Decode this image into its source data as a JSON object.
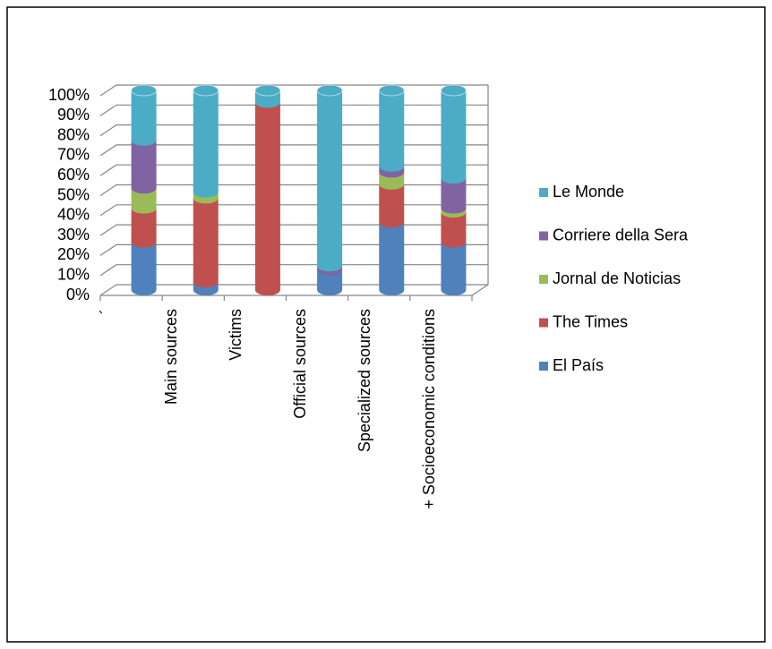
{
  "chart_data": {
    "type": "bar",
    "stacked": true,
    "categories": [
      "´",
      "Main sources",
      "Victims",
      "Official sources",
      "Specialized sources",
      "+ Socioeconomic conditions"
    ],
    "series": [
      {
        "name": "El País",
        "color": "#4f81bd",
        "values": [
          24,
          4,
          0,
          10,
          34,
          24
        ]
      },
      {
        "name": "The Times",
        "color": "#c0504d",
        "values": [
          17,
          42,
          94,
          0,
          19,
          15
        ]
      },
      {
        "name": "Jornal de Noticias",
        "color": "#9bbb59",
        "values": [
          10,
          3,
          0,
          0,
          6,
          2
        ]
      },
      {
        "name": "Corriere della Sera",
        "color": "#8064a2",
        "values": [
          24,
          0,
          0,
          2,
          3,
          15
        ]
      },
      {
        "name": "Le Monde",
        "color": "#4bacc6",
        "values": [
          25,
          51,
          6,
          88,
          38,
          44
        ]
      }
    ],
    "ylim": [
      0,
      100
    ],
    "yticks": [
      {
        "value": 0,
        "label": "0%"
      },
      {
        "value": 10,
        "label": "10%"
      },
      {
        "value": 20,
        "label": "20%"
      },
      {
        "value": 30,
        "label": "30%"
      },
      {
        "value": 40,
        "label": "40%"
      },
      {
        "value": 50,
        "label": "50%"
      },
      {
        "value": 60,
        "label": "60%"
      },
      {
        "value": 70,
        "label": "70%"
      },
      {
        "value": 80,
        "label": "80%"
      },
      {
        "value": 90,
        "label": "90%"
      },
      {
        "value": 100,
        "label": "100%"
      }
    ],
    "grid": true,
    "legend": "right"
  }
}
